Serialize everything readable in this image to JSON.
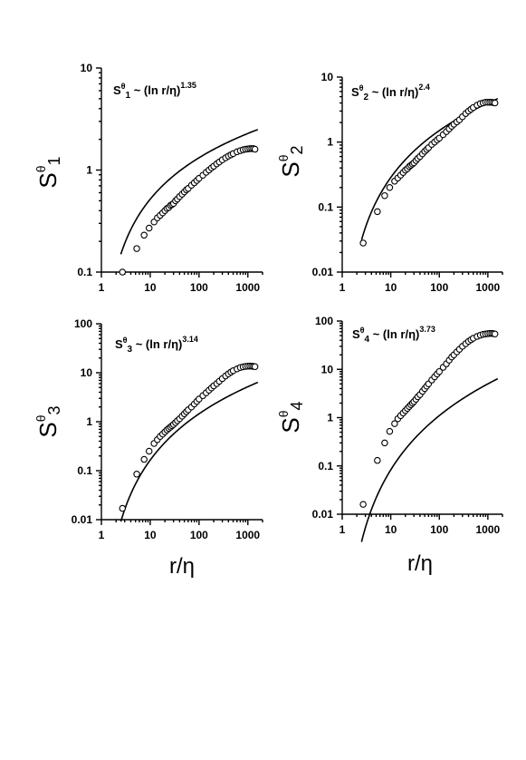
{
  "chart_data": [
    {
      "type": "scatter",
      "id": "S1",
      "ylabel": {
        "main": "S",
        "sup": "θ",
        "sub": "1"
      },
      "annotation": {
        "pre": "S",
        "sup1": "θ",
        "sub": "1",
        "mid": " ~ (ln r/η)",
        "exp": "1.35"
      },
      "xlim": [
        1,
        2000
      ],
      "ylim": [
        0.1,
        10
      ],
      "xticks": [
        "1",
        "10",
        "100",
        "1000"
      ],
      "yticks": [
        "0.1",
        "1",
        "10"
      ],
      "series": [
        {
          "kind": "markers",
          "x": [
            2.7,
            5.3,
            7.5,
            9.5,
            12,
            14,
            16,
            18,
            20,
            22,
            24,
            26,
            28,
            30,
            33,
            36,
            40,
            45,
            50,
            55,
            60,
            70,
            80,
            90,
            100,
            120,
            140,
            160,
            180,
            200,
            230,
            260,
            300,
            350,
            400,
            450,
            500,
            600,
            700,
            800,
            900,
            1000,
            1100,
            1200,
            1300,
            1400
          ],
          "y": [
            0.1,
            0.17,
            0.23,
            0.27,
            0.31,
            0.34,
            0.36,
            0.38,
            0.4,
            0.42,
            0.43,
            0.45,
            0.46,
            0.47,
            0.5,
            0.52,
            0.55,
            0.58,
            0.61,
            0.64,
            0.66,
            0.71,
            0.75,
            0.79,
            0.83,
            0.89,
            0.95,
            1.0,
            1.05,
            1.09,
            1.15,
            1.2,
            1.26,
            1.32,
            1.37,
            1.41,
            1.45,
            1.51,
            1.55,
            1.58,
            1.6,
            1.61,
            1.62,
            1.62,
            1.62,
            1.6
          ]
        },
        {
          "kind": "fit",
          "x0": 2.5,
          "x1": 1600,
          "c": 0.168,
          "b": 1.35
        }
      ]
    },
    {
      "type": "scatter",
      "id": "S2",
      "ylabel": {
        "main": "S",
        "sup": "θ",
        "sub": "2"
      },
      "annotation": {
        "pre": "S",
        "sup1": "θ",
        "sub": "2",
        "mid": " ~ (ln r/η)",
        "exp": "2.4"
      },
      "xlim": [
        1,
        2000
      ],
      "ylim": [
        0.01,
        10
      ],
      "xticks": [
        "1",
        "10",
        "100",
        "1000"
      ],
      "yticks": [
        "0.01",
        "0.1",
        "1",
        "10"
      ],
      "series": [
        {
          "kind": "markers",
          "x": [
            2.7,
            5.3,
            7.5,
            9.5,
            12,
            14,
            16,
            18,
            20,
            22,
            24,
            26,
            28,
            30,
            33,
            36,
            40,
            45,
            50,
            55,
            60,
            70,
            80,
            90,
            100,
            120,
            140,
            160,
            180,
            200,
            230,
            260,
            300,
            350,
            400,
            450,
            500,
            600,
            700,
            800,
            900,
            1000,
            1100,
            1200,
            1300,
            1400
          ],
          "y": [
            0.028,
            0.085,
            0.15,
            0.2,
            0.25,
            0.28,
            0.31,
            0.34,
            0.37,
            0.39,
            0.42,
            0.44,
            0.46,
            0.48,
            0.52,
            0.56,
            0.6,
            0.66,
            0.72,
            0.77,
            0.82,
            0.92,
            1.0,
            1.08,
            1.15,
            1.3,
            1.45,
            1.6,
            1.75,
            1.88,
            2.05,
            2.2,
            2.45,
            2.75,
            3.0,
            3.2,
            3.4,
            3.7,
            3.9,
            4.0,
            4.1,
            4.1,
            4.1,
            4.1,
            4.05,
            4.0
          ]
        },
        {
          "kind": "fit",
          "x0": 2.5,
          "x1": 1600,
          "c": 0.0385,
          "b": 2.4
        }
      ]
    },
    {
      "type": "scatter",
      "id": "S3",
      "ylabel": {
        "main": "S",
        "sup": "θ",
        "sub": "3"
      },
      "annotation": {
        "pre": "S",
        "sup1": "θ",
        "sub": "3",
        "mid": " ~ (ln r/η)",
        "exp": "3.14"
      },
      "xlim": [
        1,
        2000
      ],
      "ylim": [
        0.01,
        100
      ],
      "xticks": [
        "1",
        "10",
        "100",
        "1000"
      ],
      "yticks": [
        "0.01",
        "0.1",
        "1",
        "10",
        "100"
      ],
      "series": [
        {
          "kind": "markers",
          "x": [
            2.7,
            5.3,
            7.5,
            9.5,
            12,
            14,
            16,
            18,
            20,
            22,
            24,
            26,
            28,
            30,
            33,
            36,
            40,
            45,
            50,
            55,
            60,
            70,
            80,
            90,
            100,
            120,
            140,
            160,
            180,
            200,
            230,
            260,
            300,
            350,
            400,
            450,
            500,
            600,
            700,
            800,
            900,
            1000,
            1100,
            1200,
            1300,
            1400
          ],
          "y": [
            0.017,
            0.085,
            0.17,
            0.25,
            0.36,
            0.43,
            0.5,
            0.56,
            0.62,
            0.68,
            0.73,
            0.78,
            0.83,
            0.88,
            0.96,
            1.05,
            1.15,
            1.3,
            1.45,
            1.6,
            1.75,
            2.0,
            2.3,
            2.6,
            2.9,
            3.4,
            3.9,
            4.4,
            4.9,
            5.4,
            6.0,
            6.7,
            7.6,
            8.6,
            9.5,
            10.3,
            11.0,
            12.0,
            12.8,
            13.2,
            13.5,
            13.6,
            13.7,
            13.6,
            13.5,
            13.3
          ]
        },
        {
          "kind": "fit",
          "x0": 2.5,
          "x1": 1600,
          "c": 0.012,
          "b": 3.14
        }
      ]
    },
    {
      "type": "scatter",
      "id": "S4",
      "ylabel": {
        "main": "S",
        "sup": "θ",
        "sub": "4"
      },
      "annotation": {
        "pre": "S",
        "sup1": "θ",
        "sub": "4",
        "mid": " ~ (ln r/η)",
        "exp": "3.73"
      },
      "xlim": [
        1,
        2000
      ],
      "ylim": [
        0.01,
        100
      ],
      "xticks": [
        "1",
        "10",
        "100",
        "1000"
      ],
      "yticks": [
        "0.01",
        "0.1",
        "1",
        "10",
        "100"
      ],
      "series": [
        {
          "kind": "markers",
          "x": [
            2.7,
            5.3,
            7.5,
            9.5,
            12,
            14,
            16,
            18,
            20,
            22,
            24,
            26,
            28,
            30,
            33,
            36,
            40,
            45,
            50,
            55,
            60,
            70,
            80,
            90,
            100,
            120,
            140,
            160,
            180,
            200,
            230,
            260,
            300,
            350,
            400,
            450,
            500,
            600,
            700,
            800,
            900,
            1000,
            1100,
            1200,
            1300,
            1400
          ],
          "y": [
            0.016,
            0.13,
            0.3,
            0.52,
            0.75,
            0.95,
            1.1,
            1.25,
            1.4,
            1.55,
            1.7,
            1.85,
            2.0,
            2.15,
            2.4,
            2.7,
            3.0,
            3.5,
            4.0,
            4.5,
            5.0,
            6.0,
            7.0,
            8.0,
            9.0,
            11.0,
            13.0,
            15.5,
            18.0,
            20.0,
            23.0,
            26.0,
            30.0,
            34.0,
            38.0,
            41.0,
            44.0,
            48.0,
            51.0,
            53.0,
            54.0,
            55.0,
            55.5,
            55.5,
            55.0,
            54.0
          ]
        },
        {
          "kind": "fit",
          "x0": 2.5,
          "x1": 1600,
          "c": 0.0037,
          "b": 3.73
        }
      ]
    }
  ],
  "shared_xlabel": "r/η"
}
